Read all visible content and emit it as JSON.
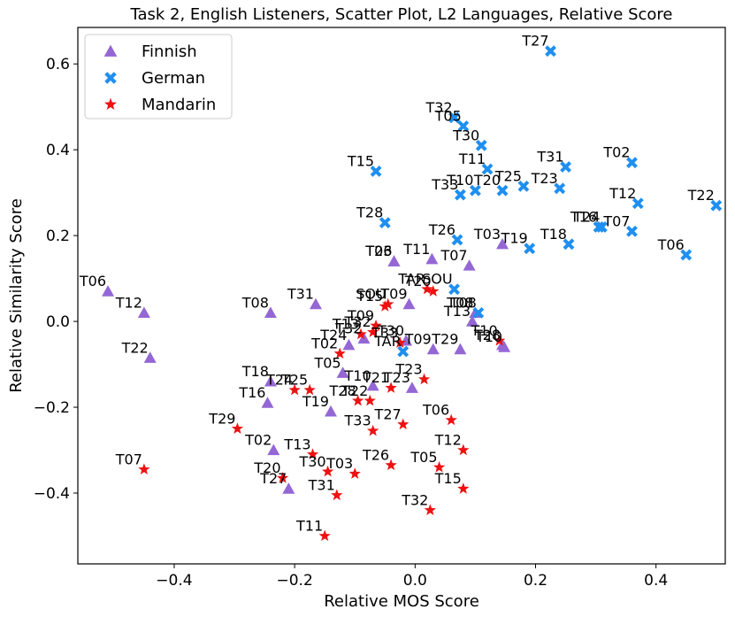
{
  "chart_data": {
    "type": "scatter",
    "title": "Task 2, English Listeners, Scatter Plot, L2 Languages, Relative Score",
    "xlabel": "Relative MOS Score",
    "ylabel": "Relative Similarity Score",
    "xlim": [
      -0.56,
      0.515
    ],
    "ylim": [
      -0.565,
      0.685
    ],
    "xticks": [
      -0.4,
      -0.2,
      0.0,
      0.2,
      0.4
    ],
    "xtick_labels": [
      "−0.4",
      "−0.2",
      "0.0",
      "0.2",
      "0.4"
    ],
    "yticks": [
      -0.4,
      -0.2,
      0.0,
      0.2,
      0.4,
      0.6
    ],
    "ytick_labels": [
      "−0.4",
      "−0.2",
      "0.0",
      "0.2",
      "0.4",
      "0.6"
    ],
    "grid": false,
    "legend_position": "top-left",
    "series": [
      {
        "name": "Finnish",
        "marker": "triangle",
        "color": "#9467d5",
        "points": [
          {
            "label": "T06",
            "x": -0.51,
            "y": 0.07
          },
          {
            "label": "T12",
            "x": -0.45,
            "y": 0.02
          },
          {
            "label": "T22",
            "x": -0.44,
            "y": -0.085
          },
          {
            "label": "T08",
            "x": -0.24,
            "y": 0.02
          },
          {
            "label": "T31",
            "x": -0.165,
            "y": 0.04
          },
          {
            "label": "T03",
            "x": -0.035,
            "y": 0.14
          },
          {
            "label": "T26",
            "x": -0.035,
            "y": 0.14
          },
          {
            "label": "T11",
            "x": 0.028,
            "y": 0.145
          },
          {
            "label": "T07",
            "x": 0.09,
            "y": 0.13
          },
          {
            "label": "T03",
            "x": 0.145,
            "y": 0.18
          },
          {
            "label": "T09",
            "x": -0.01,
            "y": 0.04
          },
          {
            "label": "T13",
            "x": 0.095,
            "y": 0.0
          },
          {
            "label": "T08",
            "x": 0.1,
            "y": 0.02
          },
          {
            "label": "T09",
            "x": 0.03,
            "y": -0.065
          },
          {
            "label": "T29",
            "x": 0.075,
            "y": -0.065
          },
          {
            "label": "T28",
            "x": 0.145,
            "y": -0.055
          },
          {
            "label": "T10",
            "x": 0.148,
            "y": -0.06
          },
          {
            "label": "T24",
            "x": -0.11,
            "y": -0.055
          },
          {
            "label": "T05",
            "x": -0.12,
            "y": -0.12
          },
          {
            "label": "T10",
            "x": -0.07,
            "y": -0.15
          },
          {
            "label": "T23",
            "x": -0.005,
            "y": -0.155
          },
          {
            "label": "T18",
            "x": -0.24,
            "y": -0.14
          },
          {
            "label": "T16",
            "x": -0.245,
            "y": -0.19
          },
          {
            "label": "T19",
            "x": -0.14,
            "y": -0.21
          },
          {
            "label": "T02",
            "x": -0.235,
            "y": -0.3
          },
          {
            "label": "T27",
            "x": -0.21,
            "y": -0.39
          },
          {
            "label": "T30",
            "x": -0.015,
            "y": -0.045
          },
          {
            "label": "T32",
            "x": -0.085,
            "y": -0.04
          }
        ]
      },
      {
        "name": "German",
        "marker": "x",
        "color": "#1f8ff0",
        "points": [
          {
            "label": "T27",
            "x": 0.225,
            "y": 0.63
          },
          {
            "label": "T32",
            "x": 0.065,
            "y": 0.475
          },
          {
            "label": "T05",
            "x": 0.08,
            "y": 0.455
          },
          {
            "label": "T30",
            "x": 0.11,
            "y": 0.41
          },
          {
            "label": "T11",
            "x": 0.12,
            "y": 0.355
          },
          {
            "label": "T15",
            "x": -0.065,
            "y": 0.35
          },
          {
            "label": "T31",
            "x": 0.25,
            "y": 0.36
          },
          {
            "label": "T02",
            "x": 0.36,
            "y": 0.37
          },
          {
            "label": "T25",
            "x": 0.18,
            "y": 0.315
          },
          {
            "label": "T23",
            "x": 0.24,
            "y": 0.31
          },
          {
            "label": "T33",
            "x": 0.075,
            "y": 0.295
          },
          {
            "label": "T10",
            "x": 0.1,
            "y": 0.305
          },
          {
            "label": "T20",
            "x": 0.145,
            "y": 0.305
          },
          {
            "label": "T12",
            "x": 0.37,
            "y": 0.275
          },
          {
            "label": "T22",
            "x": 0.5,
            "y": 0.27
          },
          {
            "label": "T28",
            "x": -0.05,
            "y": 0.23
          },
          {
            "label": "T16",
            "x": 0.305,
            "y": 0.22
          },
          {
            "label": "T24",
            "x": 0.31,
            "y": 0.22
          },
          {
            "label": "T07",
            "x": 0.36,
            "y": 0.21
          },
          {
            "label": "T26",
            "x": 0.07,
            "y": 0.19
          },
          {
            "label": "T19",
            "x": 0.19,
            "y": 0.17
          },
          {
            "label": "T18",
            "x": 0.255,
            "y": 0.18
          },
          {
            "label": "T06",
            "x": 0.45,
            "y": 0.155
          },
          {
            "label": "SOU",
            "x": 0.065,
            "y": 0.075
          },
          {
            "label": "T08",
            "x": 0.105,
            "y": 0.02
          },
          {
            "label": "TAR",
            "x": -0.02,
            "y": -0.07
          }
        ]
      },
      {
        "name": "Mandarin",
        "marker": "star",
        "color": "#ee1111",
        "points": [
          {
            "label": "T20",
            "x": 0.03,
            "y": 0.07
          },
          {
            "label": "TAR",
            "x": 0.02,
            "y": 0.075
          },
          {
            "label": "SOU",
            "x": -0.045,
            "y": 0.04
          },
          {
            "label": "T15",
            "x": -0.05,
            "y": 0.035
          },
          {
            "label": "T09",
            "x": -0.065,
            "y": -0.01
          },
          {
            "label": "T32",
            "x": -0.07,
            "y": -0.025
          },
          {
            "label": "T13",
            "x": -0.09,
            "y": -0.03
          },
          {
            "label": "T02",
            "x": -0.125,
            "y": -0.075
          },
          {
            "label": "T33",
            "x": -0.025,
            "y": -0.05
          },
          {
            "label": "T24",
            "x": -0.2,
            "y": -0.16
          },
          {
            "label": "T25",
            "x": -0.175,
            "y": -0.16
          },
          {
            "label": "T28",
            "x": -0.095,
            "y": -0.185
          },
          {
            "label": "T22",
            "x": -0.075,
            "y": -0.185
          },
          {
            "label": "T23",
            "x": 0.015,
            "y": -0.135
          },
          {
            "label": "T21",
            "x": -0.04,
            "y": -0.155
          },
          {
            "label": "T29",
            "x": -0.295,
            "y": -0.25
          },
          {
            "label": "T33",
            "x": -0.07,
            "y": -0.255
          },
          {
            "label": "T27",
            "x": -0.02,
            "y": -0.24
          },
          {
            "label": "T06",
            "x": 0.06,
            "y": -0.23
          },
          {
            "label": "T13",
            "x": -0.17,
            "y": -0.31
          },
          {
            "label": "T30",
            "x": -0.145,
            "y": -0.35
          },
          {
            "label": "T03",
            "x": -0.1,
            "y": -0.355
          },
          {
            "label": "T26",
            "x": -0.04,
            "y": -0.335
          },
          {
            "label": "T05",
            "x": 0.04,
            "y": -0.34
          },
          {
            "label": "T12",
            "x": 0.08,
            "y": -0.3
          },
          {
            "label": "T07",
            "x": -0.45,
            "y": -0.345
          },
          {
            "label": "T20",
            "x": -0.22,
            "y": -0.365
          },
          {
            "label": "T31",
            "x": -0.13,
            "y": -0.405
          },
          {
            "label": "T15",
            "x": 0.08,
            "y": -0.39
          },
          {
            "label": "T32",
            "x": 0.025,
            "y": -0.44
          },
          {
            "label": "T11",
            "x": -0.15,
            "y": -0.5
          },
          {
            "label": "T10",
            "x": 0.14,
            "y": -0.045
          }
        ]
      }
    ]
  }
}
